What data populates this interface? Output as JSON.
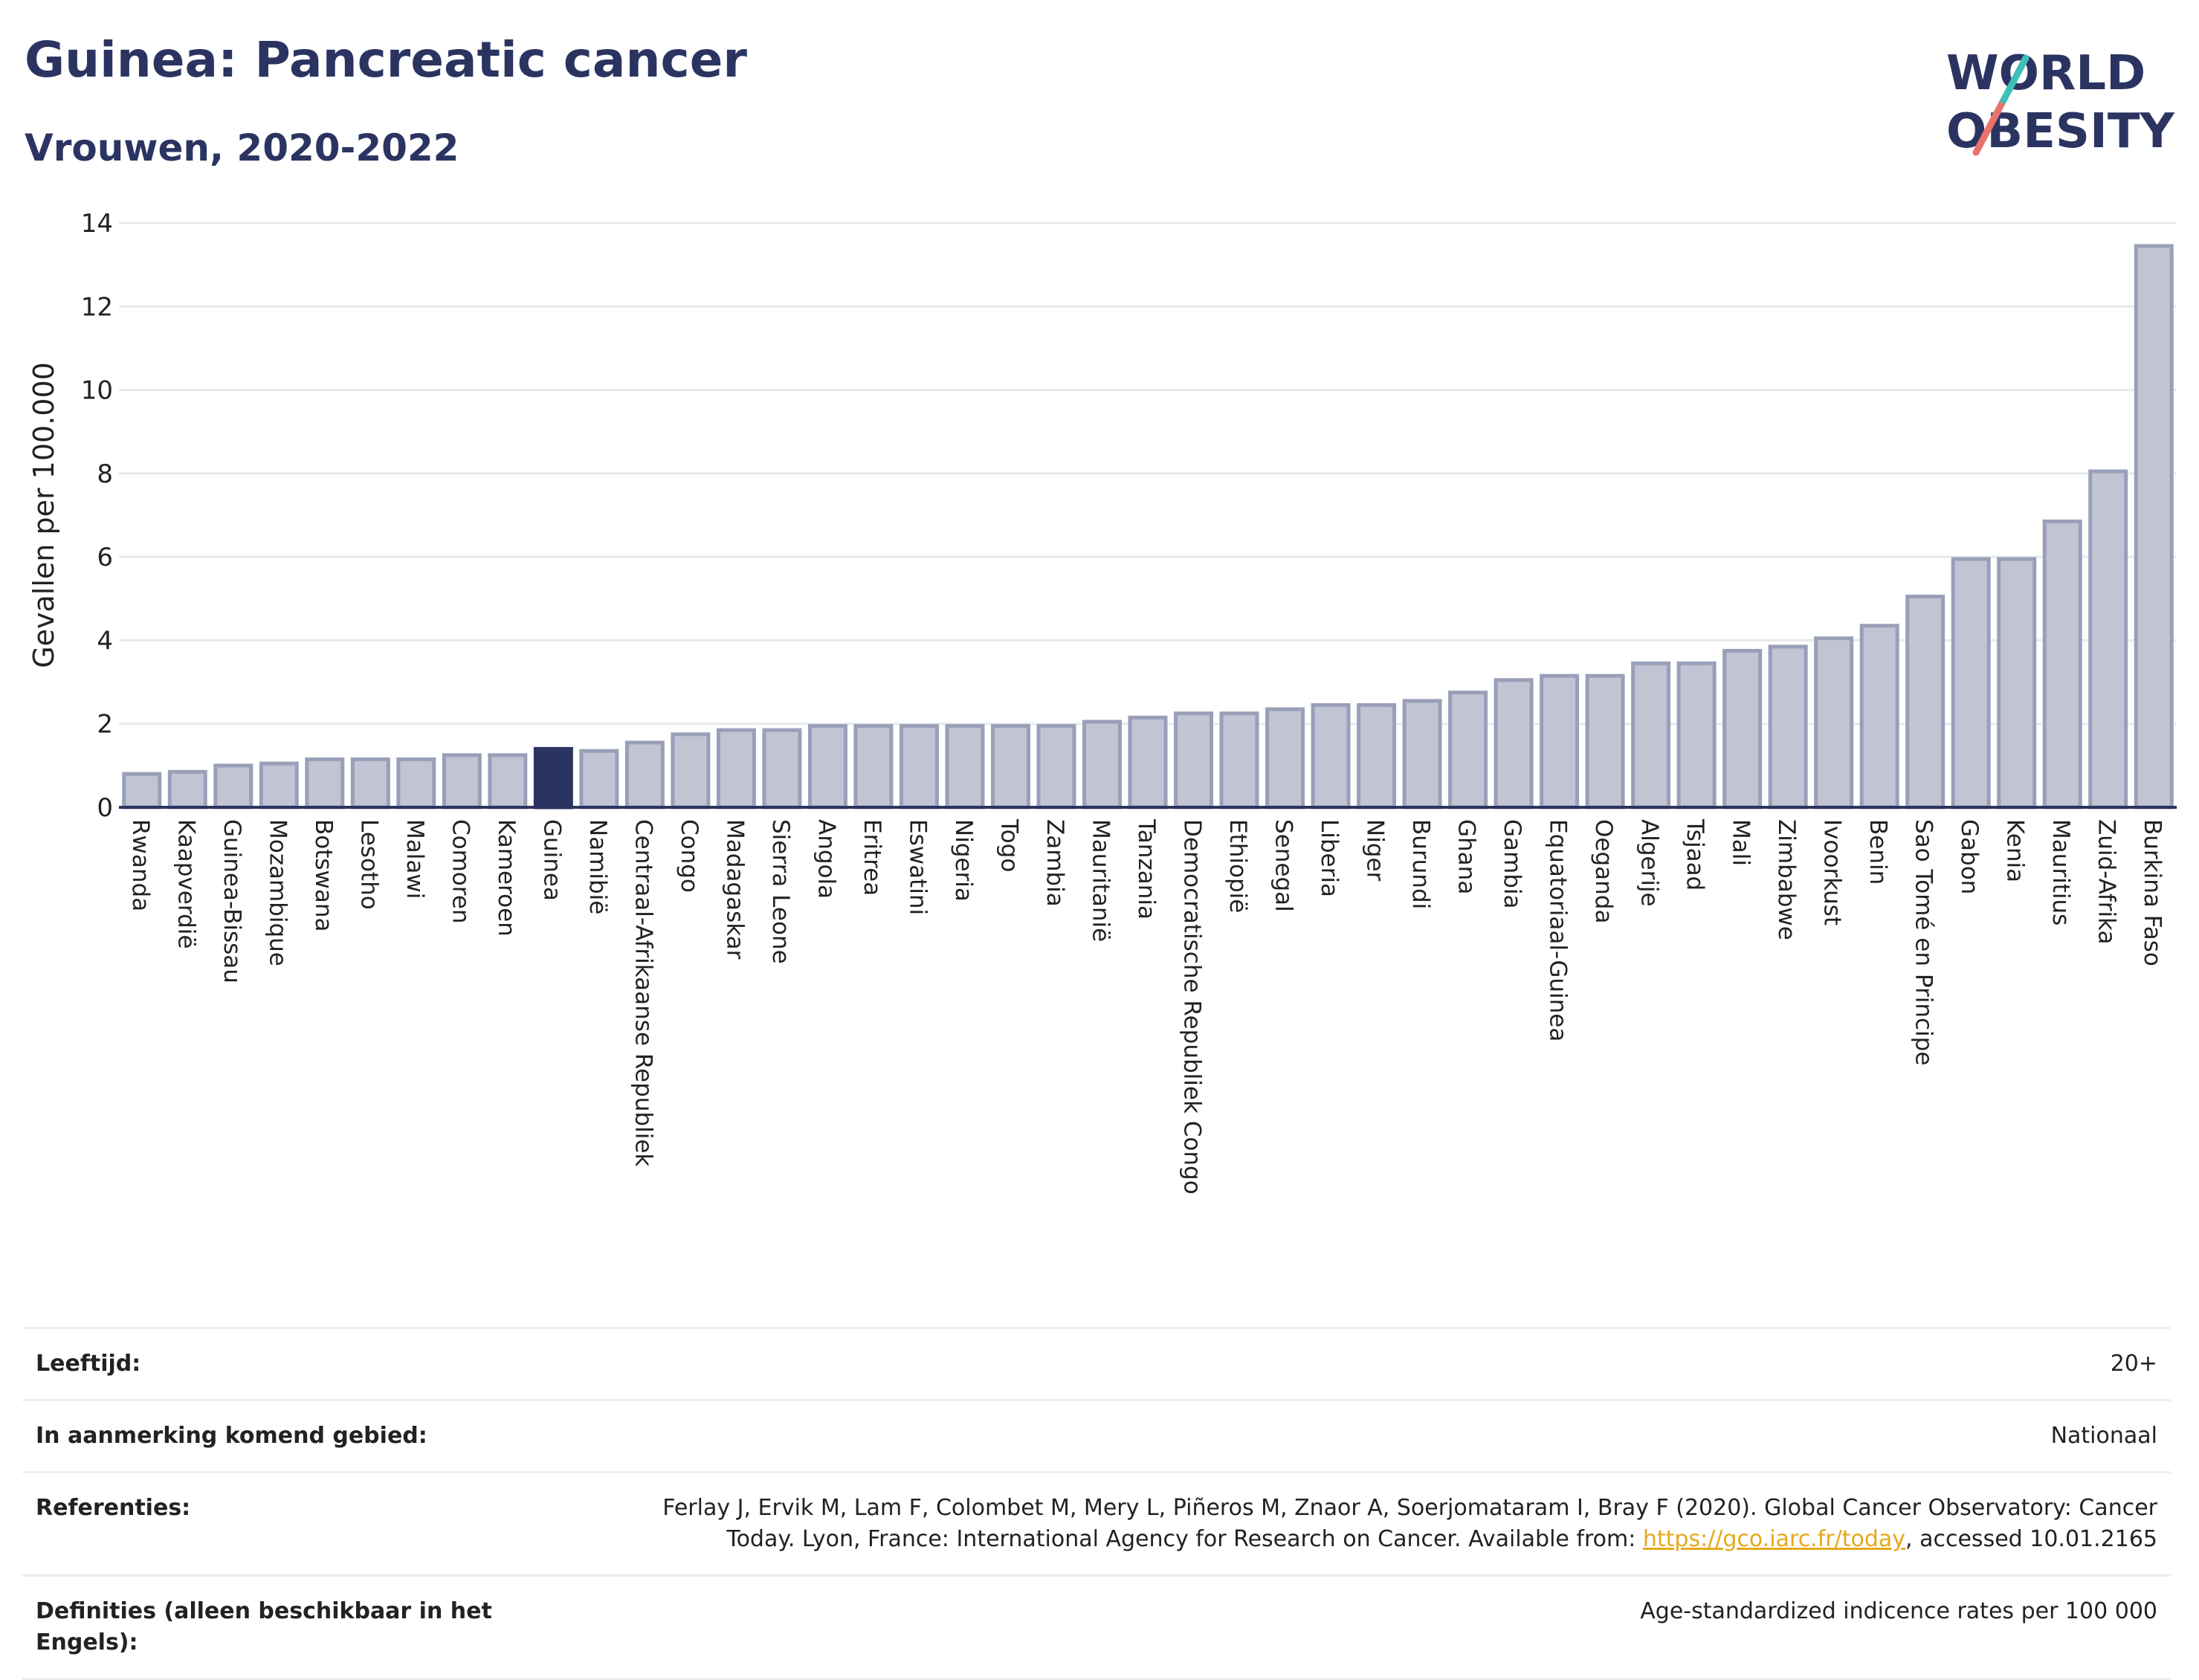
{
  "title": "Guinea: Pancreatic cancer",
  "subtitle": "Vrouwen, 2020-2022",
  "logo": {
    "line1": "WORLD",
    "line2": "OBESITY"
  },
  "colors": {
    "bar": "#c1c4d3",
    "bar_stroke": "#9a9fb8",
    "highlight": "#2b3461",
    "axis": "#2b3461",
    "grid": "#e7e9f0"
  },
  "chart_data": {
    "type": "bar",
    "ylabel": "Gevallen per 100.000",
    "ylim": [
      0,
      14
    ],
    "yticks": [
      0,
      2,
      4,
      6,
      8,
      10,
      12,
      14
    ],
    "highlight": "Guinea",
    "categories": [
      "Rwanda",
      "Kaapverdië",
      "Guinea-Bissau",
      "Mozambique",
      "Botswana",
      "Lesotho",
      "Malawi",
      "Comoren",
      "Kameroen",
      "Guinea",
      "Namibië",
      "Centraal-Afrikaanse Republiek",
      "Congo",
      "Madagaskar",
      "Sierra Leone",
      "Angola",
      "Eritrea",
      "Eswatini",
      "Nigeria",
      "Togo",
      "Zambia",
      "Mauritanië",
      "Tanzania",
      "Democratische Republiek Congo",
      "Ethiopië",
      "Senegal",
      "Liberia",
      "Niger",
      "Burundi",
      "Ghana",
      "Gambia",
      "Equatoriaal-Guinea",
      "Oeganda",
      "Algerije",
      "Tsjaad",
      "Mali",
      "Zimbabwe",
      "Ivoorkust",
      "Benin",
      "Sao Tomé en Principe",
      "Gabon",
      "Kenia",
      "Mauritius",
      "Zuid-Afrika",
      "Burkina Faso"
    ],
    "values": [
      0.8,
      0.85,
      1.0,
      1.05,
      1.15,
      1.15,
      1.15,
      1.25,
      1.25,
      1.4,
      1.35,
      1.55,
      1.75,
      1.85,
      1.85,
      1.95,
      1.95,
      1.95,
      1.95,
      1.95,
      1.95,
      2.05,
      2.15,
      2.25,
      2.25,
      2.35,
      2.45,
      2.45,
      2.55,
      2.75,
      3.05,
      3.15,
      3.15,
      3.45,
      3.45,
      3.75,
      3.85,
      4.05,
      4.35,
      5.05,
      5.95,
      5.95,
      6.85,
      8.05,
      13.45
    ]
  },
  "meta": [
    {
      "key": "Leeftijd:",
      "value": "20+"
    },
    {
      "key": "In aanmerking komend gebied:",
      "value": "Nationaal"
    },
    {
      "key": "Referenties:",
      "value": "Ferlay J, Ervik M, Lam F, Colombet M, Mery L, Piñeros M, Znaor A, Soerjomataram I, Bray F (2020). Global Cancer Observatory: Cancer Today. Lyon, France: International Agency for Research on Cancer. Available from: ",
      "link": "https://gco.iarc.fr/today",
      "value_after": ", accessed 10.01.2165"
    },
    {
      "key": "Definities (alleen beschikbaar in het Engels):",
      "value": "Age-standardized indicence rates per 100 000"
    }
  ]
}
